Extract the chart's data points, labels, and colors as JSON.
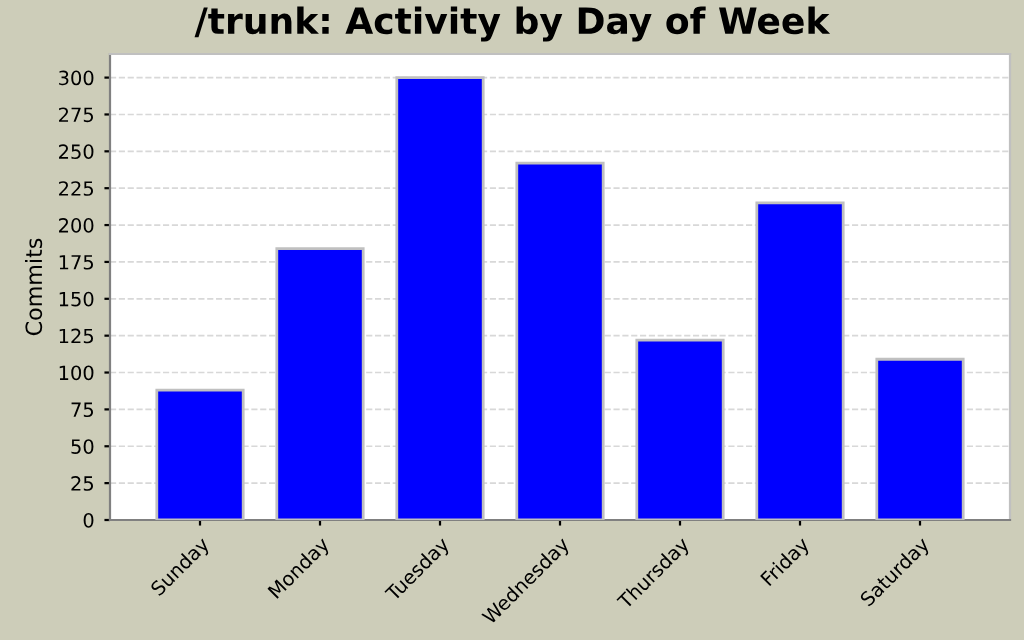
{
  "chart_data": {
    "type": "bar",
    "title": "/trunk: Activity by Day of Week",
    "ylabel": "Commits",
    "categories": [
      "Sunday",
      "Monday",
      "Tuesday",
      "Wednesday",
      "Thursday",
      "Friday",
      "Saturday"
    ],
    "values": [
      88,
      184,
      300,
      242,
      122,
      215,
      109
    ],
    "color": "#0000ff",
    "ylim": [
      0,
      316
    ],
    "yticks": [
      0,
      25,
      50,
      75,
      100,
      125,
      150,
      175,
      200,
      225,
      250,
      275,
      300
    ],
    "grid": "y"
  }
}
